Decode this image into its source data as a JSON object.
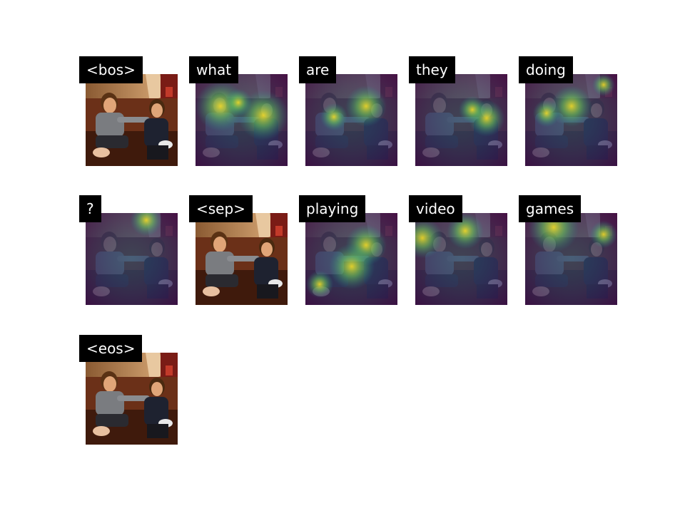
{
  "tokens": [
    {
      "label": "<bos>",
      "overlay": "none"
    },
    {
      "label": "what",
      "overlay": "heatmap"
    },
    {
      "label": "are",
      "overlay": "heatmap"
    },
    {
      "label": "they",
      "overlay": "heatmap"
    },
    {
      "label": "doing",
      "overlay": "heatmap"
    },
    {
      "label": "?",
      "overlay": "heatmap"
    },
    {
      "label": "<sep>",
      "overlay": "none"
    },
    {
      "label": "playing",
      "overlay": "heatmap"
    },
    {
      "label": "video",
      "overlay": "heatmap"
    },
    {
      "label": "games",
      "overlay": "heatmap"
    },
    {
      "label": "<eos>",
      "overlay": "none"
    }
  ],
  "colors": {
    "label_bg": "#000000",
    "label_text": "#ffffff",
    "heat_low": "#3b0a4f",
    "heat_mid": "#21908d",
    "heat_high": "#fde725"
  }
}
